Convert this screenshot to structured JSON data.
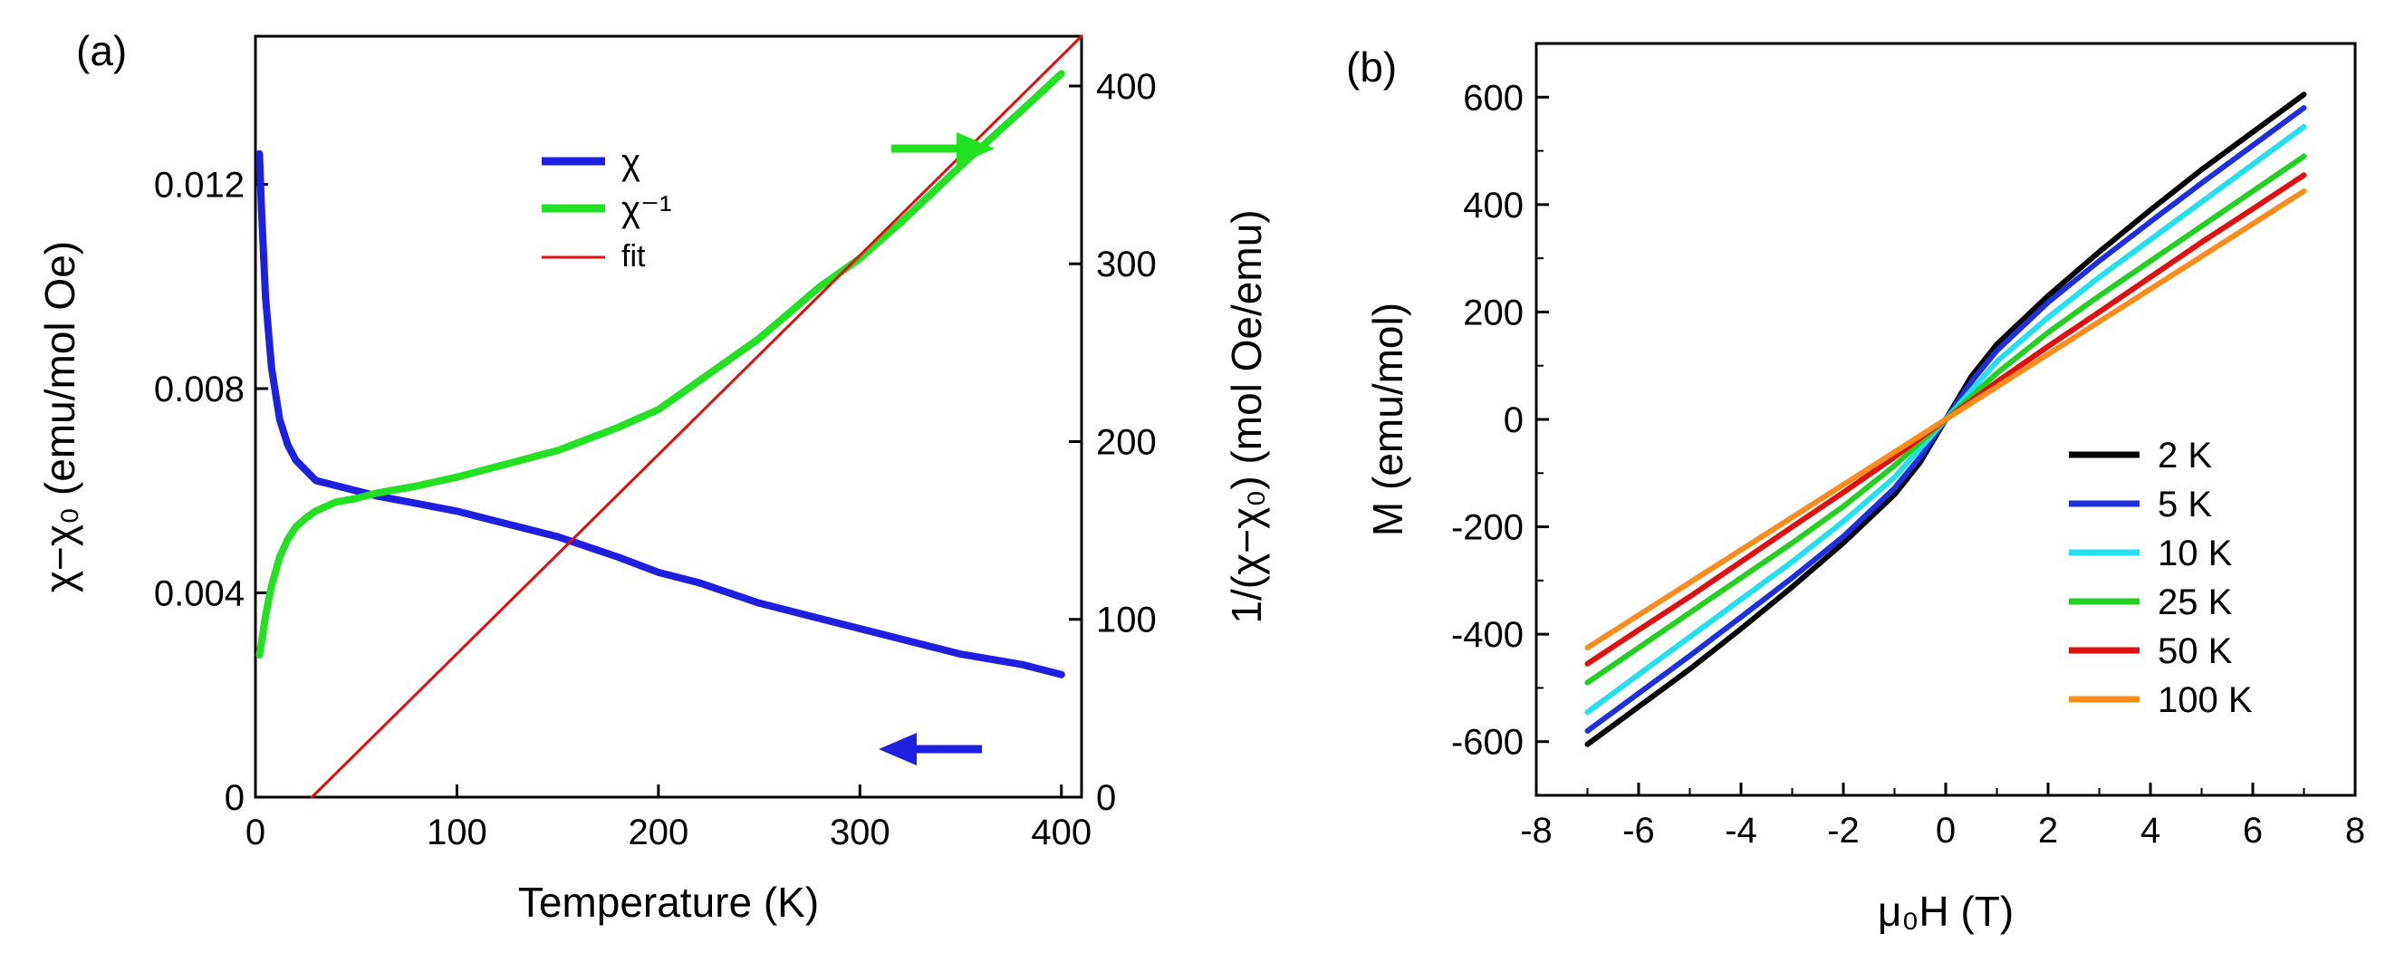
{
  "chart_data": [
    {
      "panel": "(a)",
      "type": "line",
      "xlabel": "Temperature (K)",
      "ylabel_left": "χ−χ₀ (emu/mol Oe)",
      "ylabel_right": "1/(χ−χ₀) (mol Oe/emu)",
      "xlim": [
        0,
        410
      ],
      "ylim_left": [
        0,
        0.0149
      ],
      "ylim_right": [
        0,
        428
      ],
      "xticks": [
        "0",
        "100",
        "200",
        "300",
        "400"
      ],
      "yticks_left": [
        "0",
        "0.004",
        "0.008",
        "0.012"
      ],
      "yticks_right": [
        "0",
        "100",
        "200",
        "300",
        "400"
      ],
      "legend": [
        "χ",
        "χ⁻¹",
        "fit"
      ],
      "colors": {
        "chi": "#1f1fe0",
        "chiinv": "#22e022",
        "fit": "#e01010",
        "arrow_right": "#22e022",
        "arrow_left": "#1f1fe0"
      },
      "series": [
        {
          "name": "χ",
          "axis": "left",
          "x": [
            2,
            3,
            5,
            8,
            12,
            16,
            20,
            25,
            30,
            40,
            50,
            60,
            80,
            100,
            120,
            150,
            180,
            200,
            220,
            250,
            280,
            300,
            320,
            350,
            380,
            400
          ],
          "y": [
            0.0126,
            0.0115,
            0.0098,
            0.0084,
            0.0074,
            0.0069,
            0.0066,
            0.0064,
            0.0062,
            0.0061,
            0.006,
            0.0059,
            0.00575,
            0.0056,
            0.0054,
            0.0051,
            0.0047,
            0.0044,
            0.0042,
            0.0038,
            0.0035,
            0.0033,
            0.0031,
            0.0028,
            0.0026,
            0.0024
          ]
        },
        {
          "name": "χ⁻¹",
          "axis": "right",
          "x": [
            2,
            3,
            5,
            8,
            12,
            16,
            20,
            25,
            30,
            40,
            50,
            60,
            80,
            100,
            120,
            150,
            180,
            200,
            220,
            250,
            280,
            300,
            320,
            350,
            380,
            400
          ],
          "y": [
            80,
            87,
            102,
            119,
            135,
            145,
            152,
            157,
            161,
            166,
            168,
            171,
            175,
            180,
            186,
            195,
            208,
            218,
            234,
            258,
            287,
            303,
            323,
            355,
            386,
            407
          ]
        },
        {
          "name": "fit",
          "axis": "right",
          "x": [
            28,
            410
          ],
          "y": [
            0,
            428
          ]
        }
      ]
    },
    {
      "panel": "(b)",
      "type": "line",
      "xlabel": "μ₀H (T)",
      "ylabel": "M (emu/mol)",
      "xlim": [
        -8,
        8
      ],
      "ylim": [
        -700,
        700
      ],
      "xticks": [
        "-8",
        "-6",
        "-4",
        "-2",
        "0",
        "2",
        "4",
        "6",
        "8"
      ],
      "yticks": [
        "-600",
        "-400",
        "-200",
        "0",
        "200",
        "400",
        "600"
      ],
      "series": [
        {
          "name": "2 K",
          "color": "#000000",
          "x": [
            -7,
            -6,
            -5,
            -4,
            -3,
            -2,
            -1,
            -0.5,
            0,
            0.5,
            1,
            2,
            3,
            4,
            5,
            6,
            7
          ],
          "y": [
            -605,
            -535,
            -465,
            -390,
            -312,
            -230,
            -140,
            -80,
            0,
            80,
            140,
            230,
            312,
            390,
            465,
            535,
            605
          ]
        },
        {
          "name": "5 K",
          "color": "#1f2fe0",
          "x": [
            -7,
            -6,
            -5,
            -4,
            -3,
            -2,
            -1,
            -0.5,
            0,
            0.5,
            1,
            2,
            3,
            4,
            5,
            6,
            7
          ],
          "y": [
            -580,
            -510,
            -440,
            -368,
            -295,
            -218,
            -128,
            -70,
            0,
            70,
            128,
            218,
            295,
            368,
            440,
            510,
            580
          ]
        },
        {
          "name": "10 K",
          "color": "#22e0f0",
          "x": [
            -7,
            -6,
            -5,
            -4,
            -3,
            -2,
            -1,
            0,
            1,
            2,
            3,
            4,
            5,
            6,
            7
          ],
          "y": [
            -545,
            -475,
            -405,
            -335,
            -265,
            -190,
            -108,
            0,
            108,
            190,
            265,
            335,
            405,
            475,
            545
          ]
        },
        {
          "name": "25 K",
          "color": "#22d022",
          "x": [
            -7,
            -6,
            -5,
            -4,
            -3,
            -2,
            -1,
            0,
            1,
            2,
            3,
            4,
            5,
            6,
            7
          ],
          "y": [
            -490,
            -425,
            -360,
            -295,
            -230,
            -162,
            -86,
            0,
            86,
            162,
            230,
            295,
            360,
            425,
            490
          ]
        },
        {
          "name": "50 K",
          "color": "#e01010",
          "x": [
            -7,
            -6,
            -5,
            -4,
            -3,
            -2,
            -1,
            0,
            1,
            2,
            3,
            4,
            5,
            6,
            7
          ],
          "y": [
            -455,
            -392,
            -330,
            -265,
            -200,
            -136,
            -70,
            0,
            70,
            136,
            200,
            265,
            330,
            392,
            455
          ]
        },
        {
          "name": "100 K",
          "color": "#ff8c1a",
          "x": [
            -7,
            7
          ],
          "y": [
            -425,
            425
          ]
        }
      ]
    }
  ]
}
